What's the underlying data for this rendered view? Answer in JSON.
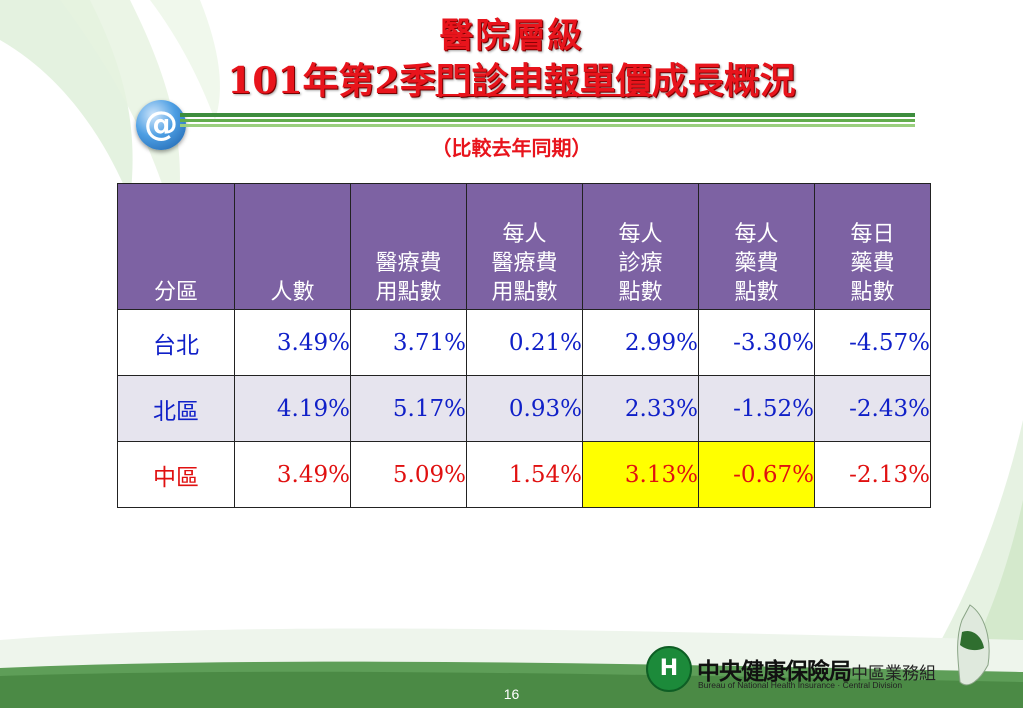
{
  "title": {
    "line1": "醫院層級",
    "line2_prefix": "101年第2季",
    "line2_underlined": "門診申報單價",
    "line2_suffix": "成長概況"
  },
  "subtitle": "（比較去年同期）",
  "at_icon": "@",
  "table": {
    "headers": [
      [
        "分區"
      ],
      [
        "人數"
      ],
      [
        "醫療費",
        "用點數"
      ],
      [
        "每人",
        "醫療費",
        "用點數"
      ],
      [
        "每人",
        "診療",
        "點數"
      ],
      [
        "每人",
        "藥費",
        "點數"
      ],
      [
        "每日",
        "藥費",
        "點數"
      ]
    ],
    "rows": [
      {
        "region": "台北",
        "values": [
          "3.49%",
          "3.71%",
          "0.21%",
          "2.99%",
          "-3.30%",
          "-4.57%"
        ]
      },
      {
        "region": "北區",
        "values": [
          "4.19%",
          "5.17%",
          "0.93%",
          "2.33%",
          "-1.52%",
          "-2.43%"
        ]
      },
      {
        "region": "中區",
        "values": [
          "3.49%",
          "5.09%",
          "1.54%",
          "3.13%",
          "-0.67%",
          "-2.13%"
        ]
      }
    ]
  },
  "colors": {
    "title": "#e8141c",
    "header_bg": "#7d62a3",
    "value_blue": "#1020c8",
    "value_red": "#e01010",
    "highlight": "#ffff00"
  },
  "footer": {
    "logo": "H",
    "org_name": "中央健康保險局",
    "division": "中區業務組",
    "org_en": "Bureau of National Health Insurance · Central Division",
    "page_number": "16"
  }
}
